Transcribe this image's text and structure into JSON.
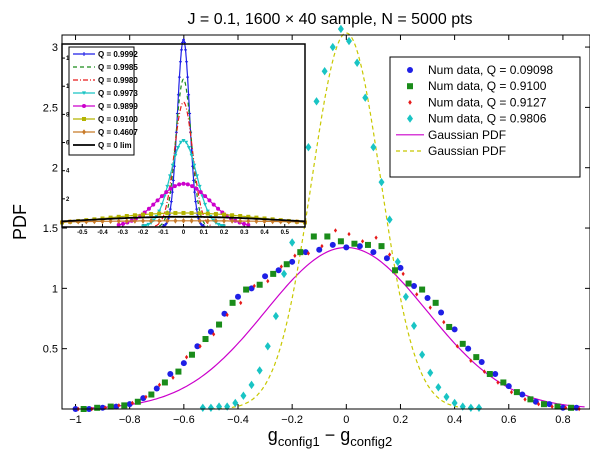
{
  "chart_data": [
    {
      "type": "scatter",
      "title": "J = 0.1, 1600 × 40 sample, N = 5000 pts",
      "xlabel": "g",
      "xlabel_sub1": "config1",
      "xlabel_mid": " − g",
      "xlabel_sub2": "config2",
      "ylabel": "PDF",
      "xlim": [
        -1.05,
        0.9
      ],
      "ylim": [
        0,
        3.1
      ],
      "xticks": [
        -1,
        -0.8,
        -0.6,
        -0.4,
        -0.2,
        0,
        0.2,
        0.4,
        0.6,
        0.8
      ],
      "xtick_labels": [
        "−1",
        "−0.8",
        "−0.6",
        "−0.4",
        "−0.2",
        "0",
        "0.2",
        "0.4",
        "0.6",
        "0.8"
      ],
      "yticks": [
        0.5,
        1,
        1.5,
        2,
        2.5,
        3
      ],
      "ytick_labels": [
        "0.5",
        "1",
        "1.5",
        "2",
        "2.5",
        "3"
      ],
      "legend_position": "top-right",
      "series": [
        {
          "name": "Num data, Q = 0.09098",
          "kind": "points",
          "marker": "circle",
          "color": "#1f1fe6",
          "x": [
            -1.0,
            -0.95,
            -0.9,
            -0.85,
            -0.8,
            -0.75,
            -0.7,
            -0.65,
            -0.6,
            -0.55,
            -0.5,
            -0.45,
            -0.4,
            -0.35,
            -0.3,
            -0.25,
            -0.2,
            -0.15,
            -0.1,
            -0.05,
            0.0,
            0.05,
            0.1,
            0.15,
            0.2,
            0.25,
            0.3,
            0.35,
            0.4,
            0.45,
            0.5,
            0.55,
            0.6,
            0.65,
            0.7,
            0.75,
            0.8,
            0.85
          ],
          "y": [
            0.0,
            0.0,
            0.01,
            0.02,
            0.04,
            0.09,
            0.17,
            0.29,
            0.38,
            0.52,
            0.64,
            0.79,
            0.93,
            1.0,
            1.1,
            1.15,
            1.22,
            1.3,
            1.32,
            1.36,
            1.34,
            1.35,
            1.3,
            1.25,
            1.17,
            1.02,
            0.92,
            0.8,
            0.66,
            0.5,
            0.39,
            0.29,
            0.19,
            0.12,
            0.06,
            0.04,
            0.01,
            0.01
          ]
        },
        {
          "name": "Num data, Q = 0.9100",
          "kind": "points",
          "marker": "square",
          "color": "#1a8c1a",
          "x": [
            -0.97,
            -0.92,
            -0.87,
            -0.82,
            -0.77,
            -0.72,
            -0.67,
            -0.62,
            -0.57,
            -0.52,
            -0.47,
            -0.42,
            -0.37,
            -0.32,
            -0.27,
            -0.22,
            -0.17,
            -0.12,
            -0.07,
            -0.02,
            0.03,
            0.08,
            0.13,
            0.18,
            0.23,
            0.28,
            0.33,
            0.38,
            0.43,
            0.48,
            0.53,
            0.58,
            0.63,
            0.68,
            0.73,
            0.78,
            0.83
          ],
          "y": [
            0.0,
            0.01,
            0.02,
            0.03,
            0.06,
            0.12,
            0.22,
            0.31,
            0.45,
            0.58,
            0.7,
            0.88,
            0.99,
            1.03,
            1.12,
            1.2,
            1.3,
            1.43,
            1.43,
            1.39,
            1.37,
            1.36,
            1.35,
            1.15,
            1.04,
            0.99,
            0.88,
            0.68,
            0.54,
            0.43,
            0.29,
            0.22,
            0.14,
            0.08,
            0.04,
            0.02,
            0.01
          ]
        },
        {
          "name": "Num data, Q = 0.9127",
          "kind": "points",
          "marker": "diamond-small",
          "color": "#e61a1a",
          "x": [
            -0.99,
            -0.94,
            -0.89,
            -0.84,
            -0.79,
            -0.74,
            -0.69,
            -0.64,
            -0.59,
            -0.54,
            -0.49,
            -0.44,
            -0.39,
            -0.34,
            -0.29,
            -0.24,
            -0.19,
            -0.14,
            -0.09,
            -0.04,
            0.01,
            0.06,
            0.11,
            0.16,
            0.21,
            0.26,
            0.31,
            0.36,
            0.41,
            0.46,
            0.51,
            0.56,
            0.61,
            0.66,
            0.71,
            0.76,
            0.81,
            0.86
          ],
          "y": [
            0.0,
            0.0,
            0.01,
            0.03,
            0.05,
            0.1,
            0.2,
            0.26,
            0.43,
            0.52,
            0.62,
            0.78,
            0.88,
            1.02,
            1.06,
            1.18,
            1.27,
            1.29,
            1.35,
            1.48,
            1.45,
            1.39,
            1.42,
            1.28,
            1.12,
            0.95,
            0.84,
            0.72,
            0.52,
            0.4,
            0.31,
            0.22,
            0.14,
            0.08,
            0.04,
            0.02,
            0.01,
            0.0
          ]
        },
        {
          "name": "Num data, Q = 0.9806",
          "kind": "points",
          "marker": "diamond",
          "color": "#19c4c4",
          "x": [
            -0.53,
            -0.5,
            -0.47,
            -0.44,
            -0.41,
            -0.38,
            -0.35,
            -0.32,
            -0.29,
            -0.26,
            -0.23,
            -0.2,
            -0.17,
            -0.14,
            -0.11,
            -0.08,
            -0.05,
            -0.02,
            0.01,
            0.04,
            0.07,
            0.1,
            0.13,
            0.16,
            0.19,
            0.22,
            0.25,
            0.28,
            0.31,
            0.34,
            0.37,
            0.4,
            0.43,
            0.46,
            0.49
          ],
          "y": [
            0.01,
            0.01,
            0.02,
            0.02,
            0.05,
            0.11,
            0.2,
            0.32,
            0.52,
            0.77,
            1.12,
            1.38,
            1.78,
            2.17,
            2.55,
            2.8,
            3.0,
            3.15,
            3.05,
            2.87,
            2.58,
            2.17,
            1.88,
            1.57,
            1.22,
            0.93,
            0.69,
            0.45,
            0.3,
            0.18,
            0.1,
            0.05,
            0.02,
            0.01,
            0.01
          ]
        },
        {
          "name": "Gaussian PDF",
          "kind": "gaussian",
          "line": "solid",
          "color": "#cc00cc",
          "mu": 0.0,
          "sigma": 0.298,
          "x_range": [
            -0.97,
            0.88
          ]
        },
        {
          "name": "Gaussian PDF",
          "kind": "gaussian",
          "line": "dashed",
          "color": "#c8c800",
          "mu": 0.0,
          "sigma": 0.128,
          "x_range": [
            -0.5,
            0.5
          ]
        }
      ]
    },
    {
      "type": "line",
      "inset": true,
      "xlim": [
        -0.6,
        0.6
      ],
      "ylim": [
        0,
        13
      ],
      "xticks": [
        -0.5,
        -0.4,
        -0.3,
        -0.2,
        -0.1,
        0,
        0.1,
        0.2,
        0.3,
        0.4,
        0.5
      ],
      "xtick_labels": [
        "-0.5",
        "-0.4",
        "-0.3",
        "-0.2",
        "-0.1",
        "0",
        "0.1",
        "0.2",
        "0.3",
        "0.4",
        "0.5"
      ],
      "yticks": [
        2,
        4,
        6,
        8,
        10,
        12
      ],
      "ytick_labels": [
        "2",
        "4",
        "6",
        "8",
        "10",
        "12"
      ],
      "legend_position": "top-left",
      "series": [
        {
          "name": "Q = 0.9992",
          "color": "#1f1fe6",
          "line": "solid",
          "marker": "plus",
          "sigma": 0.03,
          "x_range": [
            -0.1,
            0.1
          ]
        },
        {
          "name": "Q = 0.9985",
          "color": "#1a8c1a",
          "line": "dashed",
          "marker": "none",
          "sigma": 0.038,
          "x_range": [
            -0.12,
            0.12
          ]
        },
        {
          "name": "Q = 0.9980",
          "color": "#e61a1a",
          "line": "dashdot",
          "marker": "none",
          "sigma": 0.045,
          "x_range": [
            -0.14,
            0.14
          ]
        },
        {
          "name": "Q = 0.9973",
          "color": "#19c4c4",
          "line": "solid",
          "marker": "triangle-down",
          "sigma": 0.065,
          "x_range": [
            -0.2,
            0.2
          ]
        },
        {
          "name": "Q = 0.9899",
          "color": "#cc00cc",
          "line": "solid",
          "marker": "circle",
          "sigma": 0.13,
          "x_range": [
            -0.32,
            0.32
          ]
        },
        {
          "name": "Q = 0.9100",
          "color": "#b4b400",
          "line": "solid",
          "marker": "square",
          "sigma": 0.4,
          "x_range": [
            -0.6,
            0.6
          ]
        },
        {
          "name": "Q = 0.4607",
          "color": "#c87a28",
          "line": "solid",
          "marker": "diamond",
          "sigma": 0.9,
          "x_range": [
            -0.6,
            0.6
          ]
        },
        {
          "name": "Q = 0 lim",
          "color": "#000000",
          "line": "solid",
          "marker": "none",
          "sigma": 0.55,
          "x_range": [
            -0.6,
            0.6
          ]
        }
      ]
    }
  ]
}
